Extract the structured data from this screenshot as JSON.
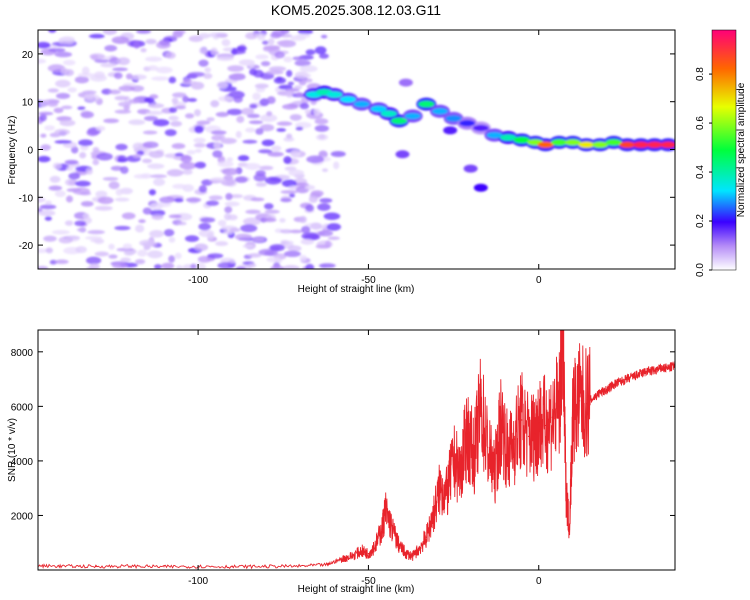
{
  "title": "KOM5.2025.308.12.03.G11",
  "colors": {
    "signal": "#e8232b",
    "noise": "#8a3cf0",
    "axis": "#000000"
  },
  "chart_data": [
    {
      "type": "heatmap",
      "xlabel": "Height of straight line (km)",
      "ylabel": "Frequency (Hz)",
      "xlim": [
        -147,
        40
      ],
      "ylim": [
        -25,
        25
      ],
      "x_ticks": [
        -100,
        -50,
        0
      ],
      "x_tick_labels": [
        "-100",
        "-50",
        "0"
      ],
      "y_ticks": [
        20,
        10,
        0,
        -10,
        -20
      ],
      "y_tick_labels": [
        "20",
        "10",
        "0",
        "-10",
        "-20"
      ],
      "colorbar": {
        "label": "Normalized spectral amplitude",
        "range": [
          0,
          0.98
        ],
        "ticks": [
          0,
          0.2,
          0.4,
          0.6,
          0.8
        ],
        "tick_labels": [
          "0.0",
          "0.2",
          "0.4",
          "0.6",
          "0.8"
        ]
      },
      "noise_region": {
        "x_range": [
          -147,
          -60
        ],
        "amplitude_range": [
          0.0,
          0.15
        ]
      },
      "signal_track": [
        {
          "x": -66,
          "freq": 11.5,
          "amp": 0.35
        },
        {
          "x": -63,
          "freq": 12.0,
          "amp": 0.4
        },
        {
          "x": -60,
          "freq": 11.5,
          "amp": 0.36
        },
        {
          "x": -56,
          "freq": 10.5,
          "amp": 0.33
        },
        {
          "x": -52,
          "freq": 9.5,
          "amp": 0.3
        },
        {
          "x": -47,
          "freq": 8.5,
          "amp": 0.32
        },
        {
          "x": -44,
          "freq": 7.5,
          "amp": 0.38
        },
        {
          "x": -41,
          "freq": 6.0,
          "amp": 0.45
        },
        {
          "x": -37,
          "freq": 7.0,
          "amp": 0.3
        },
        {
          "x": -33,
          "freq": 9.5,
          "amp": 0.45
        },
        {
          "x": -29,
          "freq": 8.0,
          "amp": 0.3
        },
        {
          "x": -25,
          "freq": 6.5,
          "amp": 0.28
        },
        {
          "x": -21,
          "freq": 5.5,
          "amp": 0.22
        },
        {
          "x": -17,
          "freq": 4.5,
          "amp": 0.18
        },
        {
          "x": -13,
          "freq": 3.0,
          "amp": 0.3
        },
        {
          "x": -9,
          "freq": 2.5,
          "amp": 0.4
        },
        {
          "x": -5,
          "freq": 2.0,
          "amp": 0.5
        },
        {
          "x": -1,
          "freq": 1.5,
          "amp": 0.6
        },
        {
          "x": 2,
          "freq": 1.0,
          "amp": 0.85
        },
        {
          "x": 6,
          "freq": 1.5,
          "amp": 0.55
        },
        {
          "x": 10,
          "freq": 1.5,
          "amp": 0.6
        },
        {
          "x": 14,
          "freq": 1.0,
          "amp": 0.7
        },
        {
          "x": 18,
          "freq": 1.0,
          "amp": 0.6
        },
        {
          "x": 22,
          "freq": 1.5,
          "amp": 0.55
        },
        {
          "x": 26,
          "freq": 1.0,
          "amp": 0.9
        },
        {
          "x": 30,
          "freq": 1.0,
          "amp": 0.95
        },
        {
          "x": 34,
          "freq": 1.0,
          "amp": 0.95
        },
        {
          "x": 38,
          "freq": 1.0,
          "amp": 0.95
        }
      ],
      "side_features": [
        {
          "x": -40,
          "freq": -1.0,
          "amp": 0.15
        },
        {
          "x": -39,
          "freq": 14.0,
          "amp": 0.12
        },
        {
          "x": -26,
          "freq": 4.0,
          "amp": 0.18
        },
        {
          "x": -20,
          "freq": -4.0,
          "amp": 0.15
        },
        {
          "x": -17,
          "freq": -8.0,
          "amp": 0.2
        }
      ]
    },
    {
      "type": "line",
      "xlabel": "Height of straight line (km)",
      "ylabel": "SNR (10 * v/v)",
      "xlim": [
        -147,
        40
      ],
      "ylim": [
        0,
        8800
      ],
      "x_ticks": [
        -100,
        -50,
        0
      ],
      "x_tick_labels": [
        "-100",
        "-50",
        "0"
      ],
      "y_ticks": [
        2000,
        4000,
        6000,
        8000
      ],
      "y_tick_labels": [
        "2000",
        "4000",
        "6000",
        "8000"
      ],
      "x": [
        -147,
        -140,
        -130,
        -120,
        -110,
        -100,
        -90,
        -80,
        -70,
        -62,
        -58,
        -55,
        -52,
        -50,
        -48,
        -46,
        -45,
        -43,
        -41,
        -39,
        -37,
        -35,
        -33,
        -31,
        -29,
        -27,
        -25,
        -23,
        -21,
        -19,
        -17,
        -15,
        -13,
        -11,
        -9,
        -7,
        -5,
        -3,
        -1,
        0,
        2,
        4,
        6,
        7,
        8,
        9,
        10,
        12,
        14,
        16,
        18,
        20,
        22,
        24,
        26,
        28,
        30,
        32,
        34,
        36,
        38,
        40
      ],
      "values": [
        150,
        140,
        130,
        140,
        120,
        130,
        120,
        130,
        140,
        200,
        400,
        500,
        700,
        600,
        900,
        1500,
        2200,
        1500,
        900,
        600,
        500,
        800,
        1200,
        2000,
        3000,
        2800,
        4000,
        3600,
        5000,
        4200,
        6000,
        4500,
        3500,
        5500,
        4200,
        4800,
        5500,
        4900,
        5000,
        5400,
        5300,
        5600,
        6000,
        8800,
        3000,
        1500,
        5800,
        6200,
        6100,
        6300,
        6500,
        6600,
        6800,
        6900,
        7000,
        7100,
        7200,
        7300,
        7300,
        7400,
        7400,
        7500
      ]
    }
  ]
}
